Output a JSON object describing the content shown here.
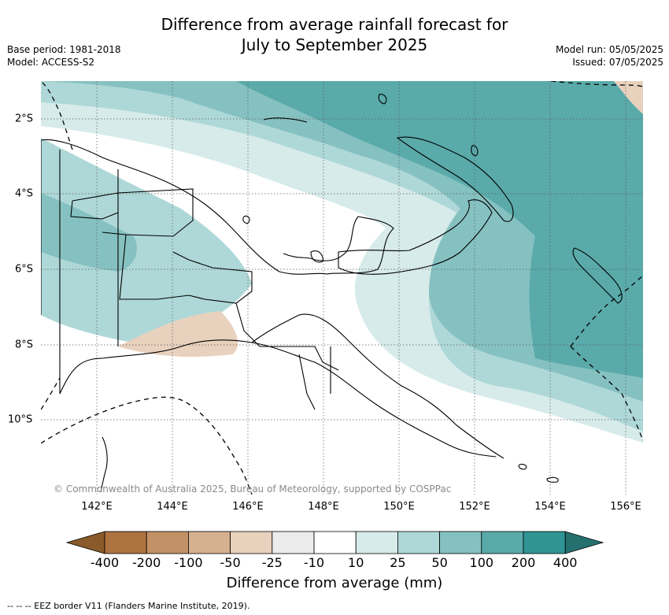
{
  "title_line1": "Difference from average rainfall forecast for",
  "title_line2": "July to September 2025",
  "base_period": "Base period: 1981-2018",
  "model": "Model: ACCESS-S2",
  "model_run": "Model run: 05/05/2025",
  "issued": "Issued: 07/05/2025",
  "copyright": "© Commonwealth of Australia 2025, Bureau of Meteorology, supported by COSPPac",
  "longitude_labels": [
    "142°E",
    "144°E",
    "146°E",
    "148°E",
    "150°E",
    "152°E",
    "154°E",
    "156°E"
  ],
  "latitude_labels": [
    "2°S",
    "4°S",
    "6°S",
    "8°S",
    "10°S"
  ],
  "legend": {
    "title": "Difference from average (mm)",
    "ticks": [
      "-400",
      "-200",
      "-100",
      "-50",
      "-25",
      "-10",
      "10",
      "25",
      "50",
      "100",
      "200",
      "400"
    ],
    "colors": [
      "#8b5a2b",
      "#ad733f",
      "#c39166",
      "#d6b190",
      "#e8d1bd",
      "#ececec",
      "#ffffff",
      "#d6ebea",
      "#aed8d7",
      "#86c1c1",
      "#5aaaaa",
      "#2f9494",
      "#24706f"
    ]
  },
  "footnote": "--  --  -- EEZ border V11 (Flanders Marine Institute, 2019)."
}
